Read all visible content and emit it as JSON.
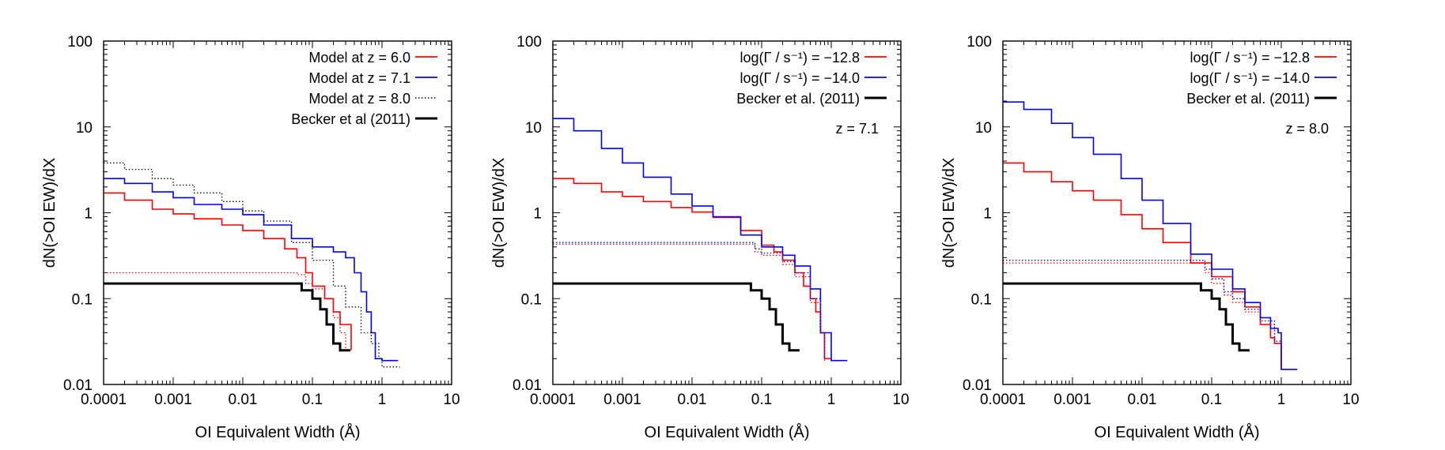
{
  "chart_data": [
    {
      "type": "line",
      "xscale": "log",
      "yscale": "log",
      "xlim": [
        0.0001,
        10
      ],
      "ylim": [
        0.01,
        100
      ],
      "xlabel": "OI Equivalent Width (Å)",
      "ylabel": "dN(>OI EW)/dX",
      "xticks": [
        "0.0001",
        "0.001",
        "0.01",
        "0.1",
        "1",
        "10"
      ],
      "yticks": [
        "0.01",
        "0.1",
        "1",
        "10",
        "100"
      ],
      "annotation": "",
      "legend_position": "top-right",
      "series": [
        {
          "name": "Model at z = 6.0",
          "color": "#ff0000",
          "style": "solid",
          "in_legend": true,
          "x": [
            0.0001,
            0.0002,
            0.0005,
            0.001,
            0.002,
            0.005,
            0.01,
            0.02,
            0.04,
            0.06,
            0.08,
            0.1,
            0.15,
            0.2,
            0.25,
            0.3,
            0.36
          ],
          "y": [
            1.7,
            1.4,
            1.1,
            0.97,
            0.85,
            0.72,
            0.62,
            0.5,
            0.38,
            0.3,
            0.2,
            0.14,
            0.1,
            0.07,
            0.05,
            0.05,
            0.025
          ]
        },
        {
          "name": "Model at z = 7.1",
          "color": "#0000ff",
          "style": "solid",
          "in_legend": true,
          "x": [
            0.0001,
            0.0002,
            0.0005,
            0.001,
            0.002,
            0.005,
            0.01,
            0.02,
            0.05,
            0.1,
            0.2,
            0.3,
            0.4,
            0.5,
            0.6,
            0.7,
            0.8,
            1.0,
            1.7
          ],
          "y": [
            2.5,
            2.2,
            1.75,
            1.5,
            1.25,
            1.1,
            0.95,
            0.72,
            0.5,
            0.4,
            0.35,
            0.3,
            0.2,
            0.12,
            0.07,
            0.04,
            0.02,
            0.019,
            0.019
          ]
        },
        {
          "name": "Model at z = 8.0",
          "color": "#000000",
          "style": "dotted",
          "in_legend": true,
          "x": [
            0.0001,
            0.0002,
            0.0005,
            0.001,
            0.002,
            0.005,
            0.01,
            0.02,
            0.05,
            0.1,
            0.2,
            0.3,
            0.5,
            0.7,
            0.9,
            1.0,
            1.8
          ],
          "y": [
            3.8,
            3.2,
            2.5,
            2.1,
            1.7,
            1.35,
            1.05,
            0.8,
            0.45,
            0.28,
            0.14,
            0.08,
            0.04,
            0.03,
            0.02,
            0.016,
            0.016
          ]
        },
        {
          "name": "",
          "color": "#ff0000",
          "style": "dotted",
          "in_legend": false,
          "x": [
            0.0001,
            0.001,
            0.01,
            0.05,
            0.06,
            0.08,
            0.1,
            0.15,
            0.2,
            0.25,
            0.3
          ],
          "y": [
            0.2,
            0.2,
            0.2,
            0.2,
            0.19,
            0.15,
            0.13,
            0.1,
            0.06,
            0.04,
            0.025
          ]
        },
        {
          "name": "Becker et al (2011)",
          "color": "#000000",
          "style": "solid-bold",
          "in_legend": true,
          "x": [
            0.0001,
            0.001,
            0.01,
            0.07,
            0.07,
            0.1,
            0.1,
            0.13,
            0.13,
            0.16,
            0.16,
            0.2,
            0.2,
            0.25,
            0.25,
            0.35
          ],
          "y": [
            0.15,
            0.15,
            0.15,
            0.15,
            0.125,
            0.125,
            0.1,
            0.1,
            0.075,
            0.075,
            0.05,
            0.05,
            0.03,
            0.03,
            0.025,
            0.025
          ]
        }
      ]
    },
    {
      "type": "line",
      "xscale": "log",
      "yscale": "log",
      "xlim": [
        0.0001,
        10
      ],
      "ylim": [
        0.01,
        100
      ],
      "xlabel": "OI Equivalent Width (Å)",
      "ylabel": "dN(>OI EW)/dX",
      "xticks": [
        "0.0001",
        "0.001",
        "0.01",
        "0.1",
        "1",
        "10"
      ],
      "yticks": [
        "0.01",
        "0.1",
        "1",
        "10",
        "100"
      ],
      "annotation": "z = 7.1",
      "legend_position": "top-right",
      "series": [
        {
          "name": "log(Γ / s⁻¹) = −12.8",
          "color": "#ff0000",
          "style": "solid",
          "in_legend": true,
          "x": [
            0.0001,
            0.0002,
            0.0005,
            0.001,
            0.002,
            0.005,
            0.01,
            0.02,
            0.05,
            0.1,
            0.15,
            0.2,
            0.3,
            0.4,
            0.5,
            0.6,
            0.7,
            0.8,
            1.0
          ],
          "y": [
            2.5,
            2.2,
            1.75,
            1.55,
            1.35,
            1.15,
            1.02,
            0.88,
            0.62,
            0.42,
            0.35,
            0.28,
            0.2,
            0.14,
            0.1,
            0.07,
            0.04,
            0.02,
            0.019
          ]
        },
        {
          "name": "log(Γ / s⁻¹) = −14.0",
          "color": "#0000ff",
          "style": "solid",
          "in_legend": true,
          "x": [
            0.0001,
            0.0002,
            0.0005,
            0.001,
            0.002,
            0.005,
            0.01,
            0.02,
            0.05,
            0.1,
            0.2,
            0.3,
            0.5,
            0.7,
            1.0,
            1.7
          ],
          "y": [
            12.5,
            9.0,
            5.6,
            3.8,
            2.6,
            1.65,
            1.2,
            0.9,
            0.55,
            0.4,
            0.32,
            0.24,
            0.13,
            0.04,
            0.019,
            0.019
          ]
        },
        {
          "name": "",
          "color": "#ff0000",
          "style": "dotted",
          "in_legend": false,
          "x": [
            0.0001,
            0.001,
            0.01,
            0.05,
            0.08,
            0.1,
            0.2,
            0.3,
            0.5,
            0.7,
            0.8
          ],
          "y": [
            0.43,
            0.43,
            0.43,
            0.43,
            0.35,
            0.32,
            0.25,
            0.18,
            0.09,
            0.04,
            0.019
          ]
        },
        {
          "name": "",
          "color": "#0000ff",
          "style": "dotted",
          "in_legend": false,
          "x": [
            0.0001,
            0.001,
            0.01,
            0.05,
            0.08,
            0.1,
            0.2,
            0.3,
            0.5,
            0.7,
            0.8
          ],
          "y": [
            0.45,
            0.45,
            0.45,
            0.45,
            0.38,
            0.34,
            0.27,
            0.2,
            0.1,
            0.04,
            0.019
          ]
        },
        {
          "name": "Becker et al. (2011)",
          "color": "#000000",
          "style": "solid-bold",
          "in_legend": true,
          "x": [
            0.0001,
            0.001,
            0.01,
            0.07,
            0.07,
            0.1,
            0.1,
            0.13,
            0.13,
            0.16,
            0.16,
            0.2,
            0.2,
            0.25,
            0.25,
            0.35
          ],
          "y": [
            0.15,
            0.15,
            0.15,
            0.15,
            0.125,
            0.125,
            0.1,
            0.1,
            0.075,
            0.075,
            0.05,
            0.05,
            0.03,
            0.03,
            0.025,
            0.025
          ]
        }
      ]
    },
    {
      "type": "line",
      "xscale": "log",
      "yscale": "log",
      "xlim": [
        0.0001,
        10
      ],
      "ylim": [
        0.01,
        100
      ],
      "xlabel": "OI Equivalent Width (Å)",
      "ylabel": "dN(>OI EW)/dX",
      "xticks": [
        "0.0001",
        "0.001",
        "0.01",
        "0.1",
        "1",
        "10"
      ],
      "yticks": [
        "0.01",
        "0.1",
        "1",
        "10",
        "100"
      ],
      "annotation": "z = 8.0",
      "legend_position": "top-right",
      "series": [
        {
          "name": "log(Γ / s⁻¹) = −12.8",
          "color": "#ff0000",
          "style": "solid",
          "in_legend": true,
          "x": [
            0.0001,
            0.0002,
            0.0005,
            0.001,
            0.002,
            0.005,
            0.01,
            0.02,
            0.05,
            0.1,
            0.2,
            0.3,
            0.5,
            0.7,
            0.8,
            1.0
          ],
          "y": [
            3.8,
            3.0,
            2.3,
            1.8,
            1.4,
            0.95,
            0.65,
            0.45,
            0.26,
            0.18,
            0.12,
            0.08,
            0.05,
            0.035,
            0.03,
            0.015
          ]
        },
        {
          "name": "log(Γ / s⁻¹) = −14.0",
          "color": "#0000ff",
          "style": "solid",
          "in_legend": true,
          "x": [
            0.0001,
            0.0002,
            0.0005,
            0.001,
            0.002,
            0.005,
            0.01,
            0.02,
            0.05,
            0.1,
            0.2,
            0.3,
            0.5,
            0.7,
            0.9,
            1.0,
            1.7
          ],
          "y": [
            19.5,
            16.0,
            11.0,
            7.5,
            4.8,
            2.5,
            1.4,
            0.75,
            0.33,
            0.22,
            0.13,
            0.09,
            0.06,
            0.045,
            0.04,
            0.015,
            0.015
          ]
        },
        {
          "name": "",
          "color": "#ff0000",
          "style": "dotted",
          "in_legend": false,
          "x": [
            0.0001,
            0.001,
            0.01,
            0.06,
            0.08,
            0.1,
            0.15,
            0.2,
            0.3,
            0.5,
            0.8,
            1.0
          ],
          "y": [
            0.26,
            0.26,
            0.26,
            0.26,
            0.2,
            0.15,
            0.11,
            0.09,
            0.07,
            0.05,
            0.03,
            0.015
          ]
        },
        {
          "name": "",
          "color": "#0000ff",
          "style": "dotted",
          "in_legend": false,
          "x": [
            0.0001,
            0.001,
            0.01,
            0.06,
            0.08,
            0.1,
            0.15,
            0.2,
            0.3,
            0.5,
            0.8,
            1.0
          ],
          "y": [
            0.28,
            0.28,
            0.28,
            0.28,
            0.22,
            0.17,
            0.12,
            0.1,
            0.075,
            0.055,
            0.032,
            0.015
          ]
        },
        {
          "name": "Becker et al. (2011)",
          "color": "#000000",
          "style": "solid-bold",
          "in_legend": true,
          "x": [
            0.0001,
            0.001,
            0.01,
            0.07,
            0.07,
            0.1,
            0.1,
            0.13,
            0.13,
            0.16,
            0.16,
            0.2,
            0.2,
            0.25,
            0.25,
            0.35
          ],
          "y": [
            0.15,
            0.15,
            0.15,
            0.15,
            0.125,
            0.125,
            0.1,
            0.1,
            0.075,
            0.075,
            0.05,
            0.05,
            0.03,
            0.03,
            0.025,
            0.025
          ]
        }
      ]
    }
  ]
}
